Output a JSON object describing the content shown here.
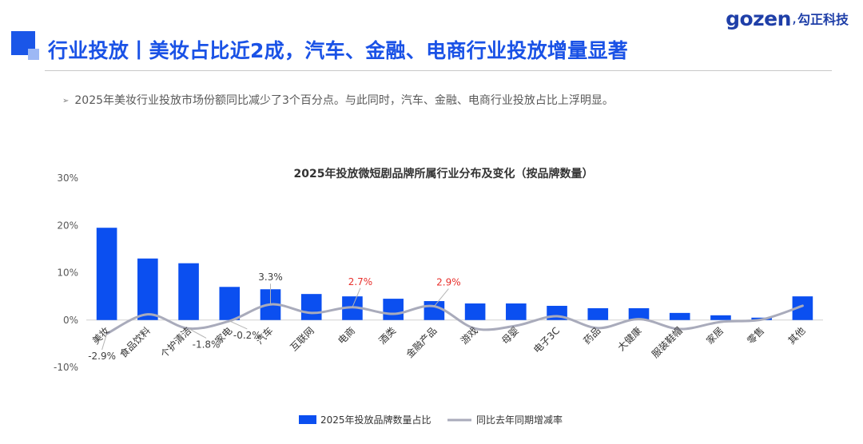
{
  "header": {
    "title": "行业投放丨美妆占比近2成，汽车、金融、电商行业投放增量显著",
    "logo_word": "gozen",
    "logo_sep": ",",
    "logo_cn": "勾正科技"
  },
  "summary": {
    "bullet": "➢",
    "text": "2025年美妆行业投放市场份额同比减少了3个百分点。与此同时，汽车、金融、电商行业投放占比上浮明显。"
  },
  "colors": {
    "accent": "#1a52e6",
    "bar": "#0b4ff0",
    "line": "#a9abbb",
    "highlight_label": "#e8302c",
    "normal_label": "#404040"
  },
  "chart_data": {
    "type": "bar",
    "title": "2025年投放微短剧品牌所属行业分布及变化（按品牌数量）",
    "categories": [
      "美妆",
      "食品饮料",
      "个护清洁",
      "家电",
      "汽车",
      "互联网",
      "电商",
      "酒类",
      "金融产品",
      "游戏",
      "母婴",
      "电子3C",
      "药品",
      "大健康",
      "服装鞋帽",
      "家居",
      "零售",
      "其他"
    ],
    "ylim": [
      -10,
      30
    ],
    "yticks": [
      -10,
      0,
      10,
      20,
      30
    ],
    "ytick_labels": [
      "-10%",
      "0%",
      "10%",
      "20%",
      "30%"
    ],
    "grid": false,
    "legend_position": "bottom",
    "series": [
      {
        "name": "2025年投放品牌数量占比",
        "type": "bar",
        "values": [
          19.5,
          13.0,
          12.0,
          7.0,
          6.5,
          5.5,
          5.0,
          4.5,
          4.0,
          3.5,
          3.5,
          3.0,
          2.5,
          2.5,
          1.5,
          1.0,
          0.5,
          5.0
        ]
      },
      {
        "name": "同比去年同期增减率",
        "type": "line",
        "values": [
          -2.9,
          1.2,
          -1.8,
          -0.2,
          3.3,
          1.5,
          2.7,
          1.3,
          2.9,
          -1.8,
          -1.2,
          0.8,
          -1.7,
          0.2,
          -1.9,
          -0.4,
          0.1,
          3.0
        ]
      }
    ],
    "annotations": [
      {
        "index": 0,
        "text": "-2.9%",
        "highlight": false
      },
      {
        "index": 2,
        "text": "-1.8%",
        "highlight": false
      },
      {
        "index": 3,
        "text": "-0.2%",
        "highlight": false
      },
      {
        "index": 4,
        "text": "3.3%",
        "highlight": false
      },
      {
        "index": 6,
        "text": "2.7%",
        "highlight": true
      },
      {
        "index": 8,
        "text": "2.9%",
        "highlight": true
      }
    ]
  }
}
